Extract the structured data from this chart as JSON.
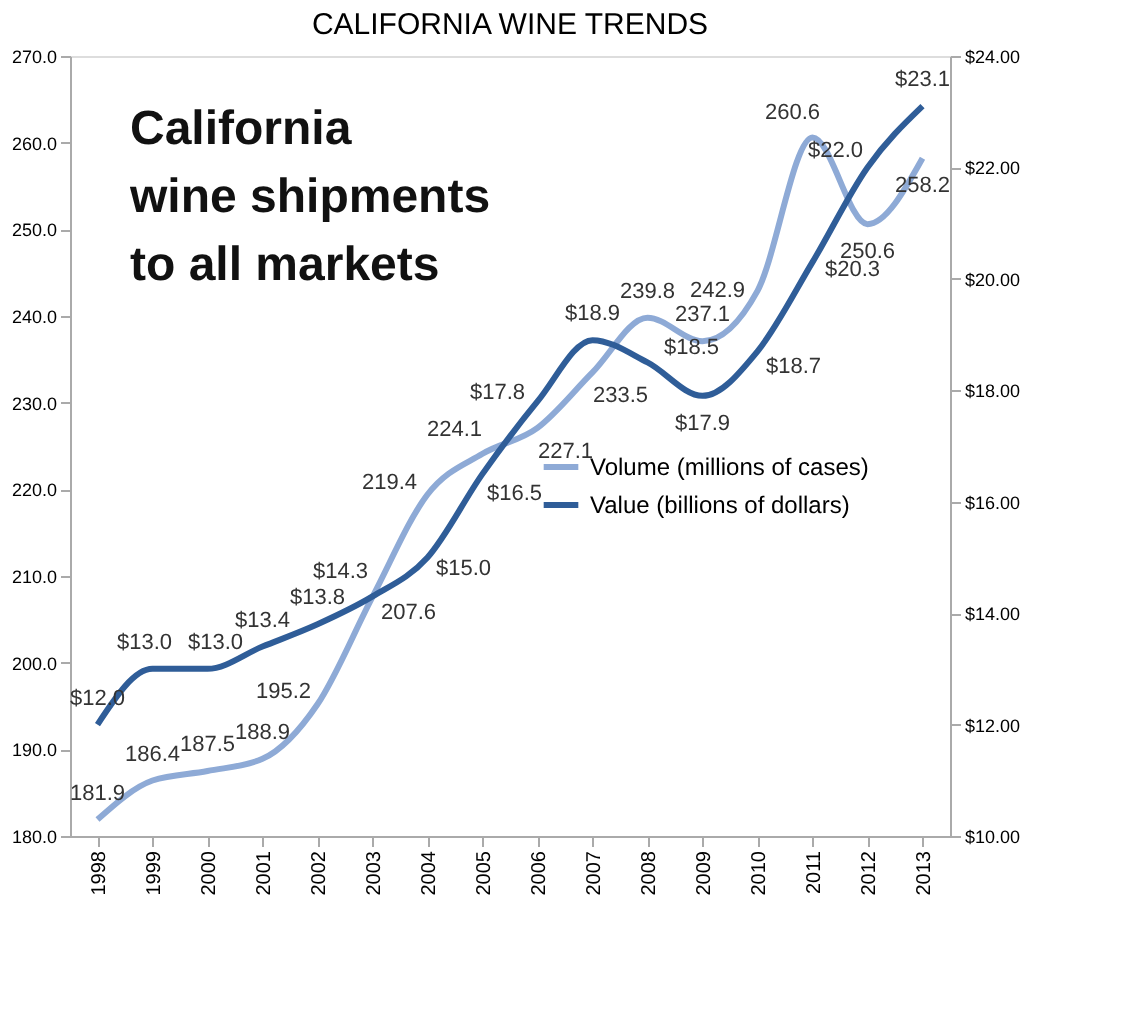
{
  "chart_data": {
    "type": "line",
    "title": "CALIFORNIA WINE TRENDS",
    "categories": [
      "1998",
      "1999",
      "2000",
      "2001",
      "2002",
      "2003",
      "2004",
      "2005",
      "2006",
      "2007",
      "2008",
      "2009",
      "2010",
      "2011",
      "2012",
      "2013"
    ],
    "series": [
      {
        "name": "Volume (millions of cases)",
        "color": "#8eaad6",
        "values": [
          181.9,
          186.4,
          187.5,
          188.9,
          195.2,
          207.6,
          219.4,
          224.1,
          227.1,
          233.5,
          239.8,
          237.1,
          242.9,
          260.6,
          250.6,
          258.2
        ],
        "value_labels": [
          "181.9",
          "186.4",
          "187.5",
          "188.9",
          "195.2",
          "207.6",
          "219.4",
          "224.1",
          "227.1",
          "233.5",
          "239.8",
          "237.1",
          "242.9",
          "260.6",
          "250.6",
          "258.2"
        ]
      },
      {
        "name": "Value (billions of dollars)",
        "color": "#2f5d98",
        "axis": "y2",
        "values": [
          12.0,
          13.0,
          13.0,
          13.4,
          13.8,
          14.3,
          15.0,
          16.5,
          17.8,
          18.9,
          18.5,
          17.9,
          18.7,
          20.3,
          22.0,
          23.1
        ],
        "value_labels": [
          "$12.0",
          "$13.0",
          "$13.0",
          "$13.4",
          "$13.8",
          "$14.3",
          "$15.0",
          "$16.5",
          "$17.8",
          "$18.9",
          "$18.5",
          "$17.9",
          "$18.7",
          "$20.3",
          "$22.0",
          "$23.1"
        ]
      }
    ],
    "ylim": [
      180,
      270
    ],
    "yticks": [
      {
        "value": 180,
        "label": "180.0"
      },
      {
        "value": 190,
        "label": "190.0"
      },
      {
        "value": 200,
        "label": "200.0"
      },
      {
        "value": 210,
        "label": "210.0"
      },
      {
        "value": 220,
        "label": "220.0"
      },
      {
        "value": 230,
        "label": "230.0"
      },
      {
        "value": 240,
        "label": "240.0"
      },
      {
        "value": 250,
        "label": "250.0"
      },
      {
        "value": 260,
        "label": "260.0"
      },
      {
        "value": 270,
        "label": "270.0"
      }
    ],
    "y2lim": [
      10,
      24
    ],
    "y2ticks": [
      {
        "value": 10,
        "label": "$10.00"
      },
      {
        "value": 12,
        "label": "$12.00"
      },
      {
        "value": 14,
        "label": "$14.00"
      },
      {
        "value": 16,
        "label": "$16.00"
      },
      {
        "value": 18,
        "label": "$18.00"
      },
      {
        "value": 20,
        "label": "$20.00"
      },
      {
        "value": 22,
        "label": "$22.00"
      },
      {
        "value": 24,
        "label": "$24.00"
      }
    ],
    "annotations": [
      "California\nwine shipments\nto all markets"
    ],
    "legend": "right",
    "grid": false,
    "line_style": "solid"
  }
}
